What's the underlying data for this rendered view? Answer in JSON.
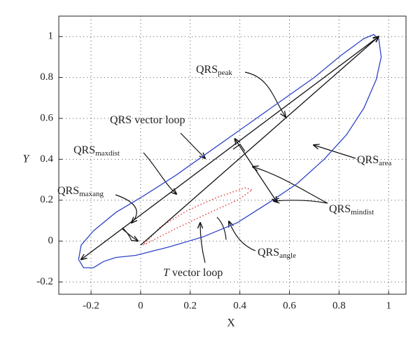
{
  "chart_data": {
    "type": "loop",
    "x_label": "X",
    "y_label": "Y",
    "xlim": [
      -0.33,
      1.07
    ],
    "ylim": [
      -0.26,
      1.1
    ],
    "xticks": [
      -0.2,
      0,
      0.2,
      0.4,
      0.6,
      0.8,
      1
    ],
    "yticks": [
      -0.2,
      0,
      0.2,
      0.4,
      0.6,
      0.8,
      1
    ],
    "grid": true,
    "series": [
      {
        "name": "QRS vector loop",
        "color": "#2f45c8",
        "x": [
          0.96,
          0.97,
          0.95,
          0.9,
          0.83,
          0.74,
          0.63,
          0.52,
          0.39,
          0.25,
          0.11,
          -0.02,
          -0.1,
          -0.15,
          -0.19,
          -0.23,
          -0.25,
          -0.24,
          -0.19,
          -0.1,
          0.01,
          0.14,
          0.28,
          0.42,
          0.56,
          0.7,
          0.81,
          0.9,
          0.94,
          0.96
        ],
        "y": [
          0.99,
          0.9,
          0.79,
          0.65,
          0.52,
          0.4,
          0.28,
          0.19,
          0.09,
          0.02,
          -0.03,
          -0.07,
          -0.08,
          -0.1,
          -0.13,
          -0.13,
          -0.09,
          -0.02,
          0.05,
          0.14,
          0.22,
          0.32,
          0.44,
          0.56,
          0.68,
          0.8,
          0.91,
          0.99,
          1.01,
          0.99
        ]
      },
      {
        "name": "T vector loop",
        "color": "#e03030",
        "x": [
          0.01,
          0.14,
          0.28,
          0.39,
          0.45,
          0.42,
          0.3,
          0.19,
          0.08,
          0.01
        ],
        "y": [
          -0.02,
          0.06,
          0.14,
          0.2,
          0.25,
          0.26,
          0.21,
          0.15,
          0.07,
          -0.02
        ]
      }
    ],
    "vectors": [
      {
        "x": [
          -0.24,
          0.96
        ],
        "y": [
          -0.09,
          1.0
        ]
      },
      {
        "x": [
          0.0,
          0.96
        ],
        "y": [
          -0.02,
          1.0
        ]
      },
      {
        "x": [
          0.38,
          0.55
        ],
        "y": [
          0.5,
          0.19
        ]
      }
    ],
    "annotations": [
      {
        "text": "QRS",
        "sub": "peak"
      },
      {
        "text": "QRS vector loop"
      },
      {
        "text": "QRS",
        "sub": "maxdist"
      },
      {
        "text": "QRS",
        "sub": "maxang"
      },
      {
        "text": "QRS",
        "sub": "area"
      },
      {
        "text": "QRS",
        "sub": "mindist"
      },
      {
        "text": "QRS",
        "sub": "angle"
      },
      {
        "text": "T vector loop"
      }
    ]
  }
}
